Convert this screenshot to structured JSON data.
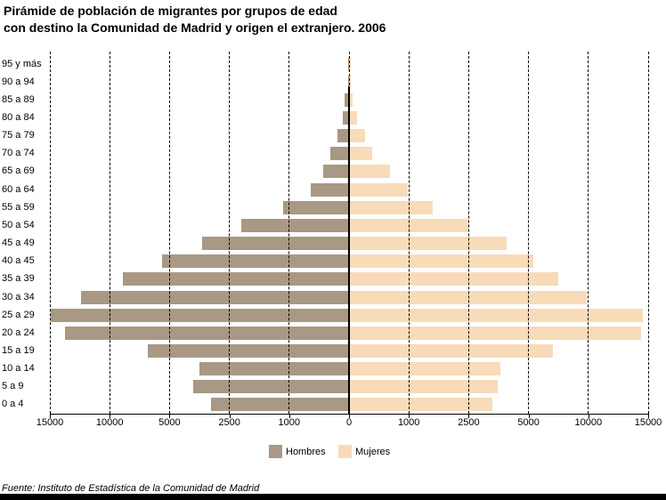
{
  "title": {
    "line1": "Pirámide de población de migrantes por grupos de edad",
    "line2": "con destino la Comunidad de Madrid y origen el extranjero. 2006"
  },
  "footer": "Fuente: Instituto de Estadística de la Comunidad de Madrid",
  "legend": [
    {
      "label": "Hombres",
      "color": "#A89884"
    },
    {
      "label": "Mujeres",
      "color": "#F8DBB8"
    }
  ],
  "chart_data": {
    "type": "bar",
    "subtype": "population-pyramid",
    "title": "Pirámide de población de migrantes por grupos de edad con destino la Comunidad de Madrid y origen el extranjero. 2006",
    "categories": [
      "95 y más",
      "90 a 94",
      "85 a 89",
      "80 a 84",
      "75 a 79",
      "70 a 74",
      "65 a 69",
      "60 a 64",
      "55 a 59",
      "50 a 54",
      "45 a 49",
      "40 a 45",
      "35 a 39",
      "30 a 34",
      "25 a 29",
      "20 a 24",
      "15 a 19",
      "10 a 14",
      "5 a 9",
      "0 a 4"
    ],
    "series": [
      {
        "name": "Hombres",
        "side": "left",
        "color": "#A89884",
        "values": [
          10,
          15,
          80,
          105,
          195,
          310,
          435,
          640,
          1150,
          2200,
          3650,
          5600,
          8900,
          12400,
          14950,
          13700,
          6800,
          3740,
          4000,
          3260
        ]
      },
      {
        "name": "Mujeres",
        "side": "right",
        "color": "#F8DBB8",
        "values": [
          30,
          30,
          60,
          130,
          265,
          390,
          690,
          975,
          1600,
          2500,
          4075,
          5400,
          7500,
          9900,
          14550,
          14400,
          7050,
          3820,
          3700,
          3490
        ]
      }
    ],
    "axis_breakpoints": [
      0,
      1000,
      2500,
      5000,
      10000,
      15000
    ],
    "x_tick_labels": [
      "15000",
      "10000",
      "5000",
      "2500",
      "1000",
      "0",
      "1000",
      "2500",
      "5000",
      "10000",
      "15000"
    ],
    "xlabel": "",
    "ylabel": "",
    "grid": true,
    "gridlines_in_front": true,
    "legend_position": "bottom"
  }
}
